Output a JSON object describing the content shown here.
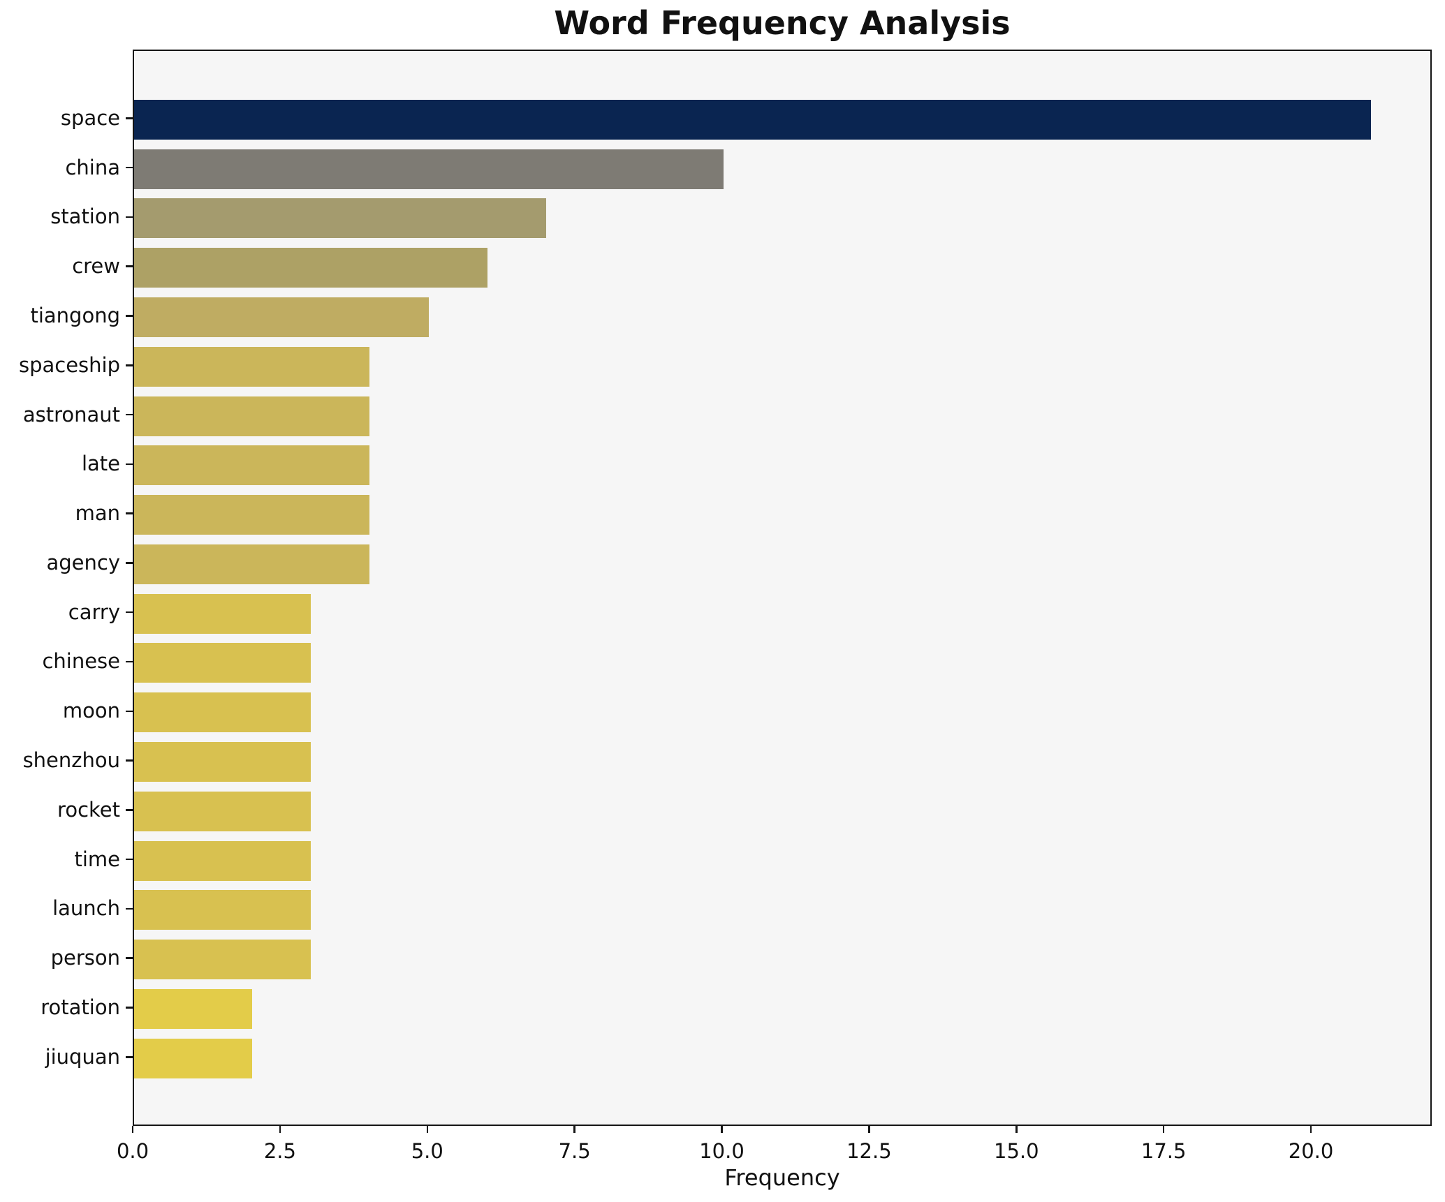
{
  "title": "Word Frequency Analysis",
  "chart_data": {
    "type": "bar",
    "orientation": "horizontal",
    "title": "Word Frequency Analysis",
    "xlabel": "Frequency",
    "ylabel": "",
    "categories": [
      "space",
      "china",
      "station",
      "crew",
      "tiangong",
      "spaceship",
      "astronaut",
      "late",
      "man",
      "agency",
      "carry",
      "chinese",
      "moon",
      "shenzhou",
      "rocket",
      "time",
      "launch",
      "person",
      "rotation",
      "jiuquan"
    ],
    "values": [
      21,
      10,
      7,
      6,
      5,
      4,
      4,
      4,
      4,
      4,
      3,
      3,
      3,
      3,
      3,
      3,
      3,
      3,
      2,
      2
    ],
    "bar_colors": [
      "#0a2551",
      "#7e7b74",
      "#a49b6e",
      "#ada165",
      "#bfac62",
      "#cbb65a",
      "#cbb65a",
      "#cbb65a",
      "#cbb65a",
      "#cbb65a",
      "#d8c150",
      "#d8c150",
      "#d8c150",
      "#d8c150",
      "#d8c150",
      "#d8c150",
      "#d8c150",
      "#d8c150",
      "#e3cc49",
      "#e3cc49"
    ],
    "xlim": [
      0,
      22.05
    ],
    "xticks": [
      0,
      2.5,
      5,
      7.5,
      10,
      12.5,
      15,
      17.5,
      20
    ],
    "xtick_labels": [
      "0.0",
      "2.5",
      "5.0",
      "7.5",
      "10.0",
      "12.5",
      "15.0",
      "17.5",
      "20.0"
    ],
    "grid": false,
    "legend_position": "none",
    "colormap": "cividis-reversed-by-value",
    "plot_background": "#f6f6f6",
    "figure_background": "#ffffff",
    "spine_color": "#151515",
    "text_color": "#111111"
  }
}
